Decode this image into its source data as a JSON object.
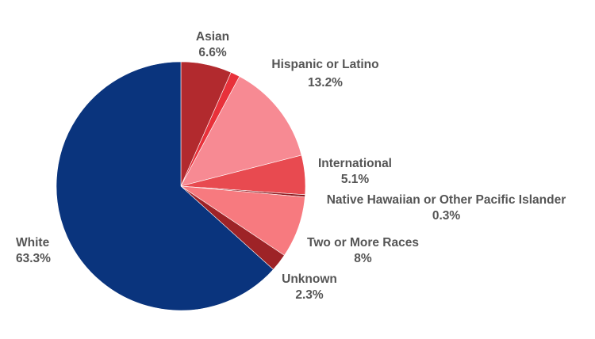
{
  "chart_data": {
    "type": "pie",
    "title": "",
    "start_angle_deg": 0,
    "direction": "clockwise",
    "slices": [
      {
        "name": "Asian",
        "label_value": "6.6%",
        "value": 6.6,
        "color": "#B22A2E"
      },
      {
        "name": "",
        "label_value": "",
        "value": 1.2,
        "color": "#E8313A"
      },
      {
        "name": "Hispanic or Latino",
        "label_value": "13.2%",
        "value": 13.2,
        "color": "#F78A93"
      },
      {
        "name": "International",
        "label_value": "5.1%",
        "value": 5.1,
        "color": "#E84A50"
      },
      {
        "name": "Native Hawaiian or Other Pacific Islander",
        "label_value": "0.3%",
        "value": 0.3,
        "color": "#8C1A1E"
      },
      {
        "name": "Two or More Races",
        "label_value": "8%",
        "value": 8.0,
        "color": "#F77A7F"
      },
      {
        "name": "Unknown",
        "label_value": "2.3%",
        "value": 2.3,
        "color": "#9E2327"
      },
      {
        "name": "White",
        "label_value": "63.3%",
        "value": 63.3,
        "color": "#0A347D"
      }
    ]
  }
}
